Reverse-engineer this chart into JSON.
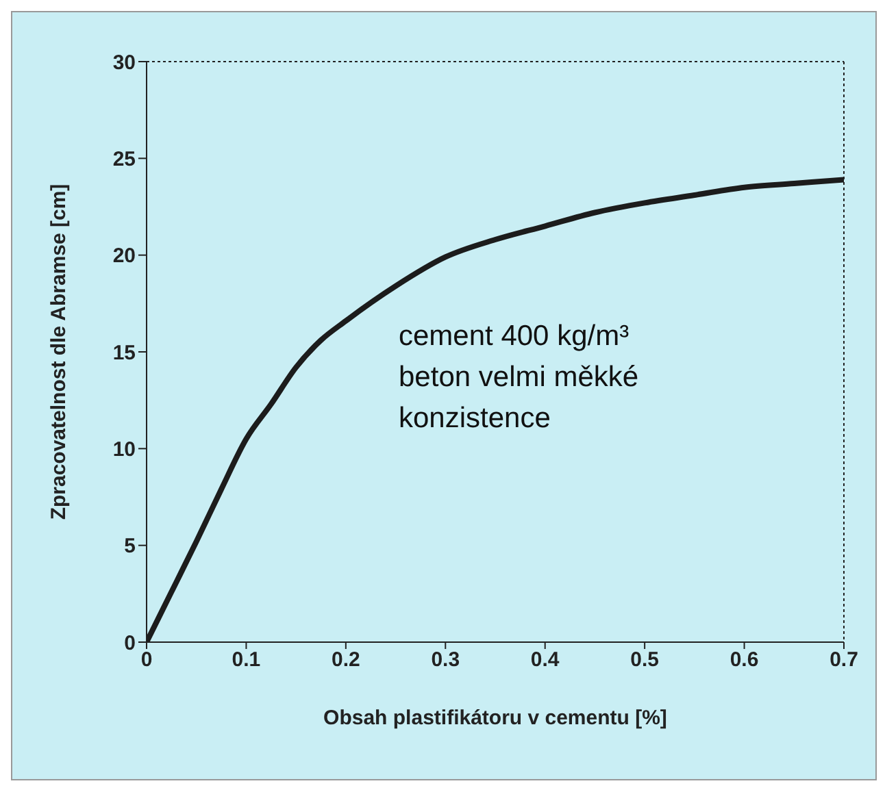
{
  "chart_data": {
    "type": "line",
    "xlabel": "Obsah plastifikátoru v cementu [%]",
    "ylabel": "Zpracovatelnost dle Abramse [cm]",
    "x": [
      0,
      0.025,
      0.05,
      0.075,
      0.1,
      0.125,
      0.15,
      0.175,
      0.2,
      0.25,
      0.3,
      0.35,
      0.4,
      0.45,
      0.5,
      0.55,
      0.6,
      0.65,
      0.7
    ],
    "series": [
      {
        "color": "#1c1c1c",
        "values": [
          0,
          2.6,
          5.2,
          7.9,
          10.5,
          12.3,
          14.2,
          15.6,
          16.6,
          18.4,
          19.9,
          20.8,
          21.5,
          22.2,
          22.7,
          23.1,
          23.5,
          23.7,
          23.9
        ]
      }
    ],
    "xlim": [
      0,
      0.7
    ],
    "xticks": [
      0,
      0.1,
      0.2,
      0.3,
      0.4,
      0.5,
      0.6,
      0.7
    ],
    "ylim": [
      0,
      30
    ],
    "yticks": [
      0,
      5,
      10,
      15,
      20,
      25,
      30
    ],
    "grid": false,
    "legend": false,
    "marker": "none",
    "line_style": "solid",
    "annotations": [
      "cement 400 kg/m³\nbeton velmi měkké\nkonzistence"
    ]
  }
}
